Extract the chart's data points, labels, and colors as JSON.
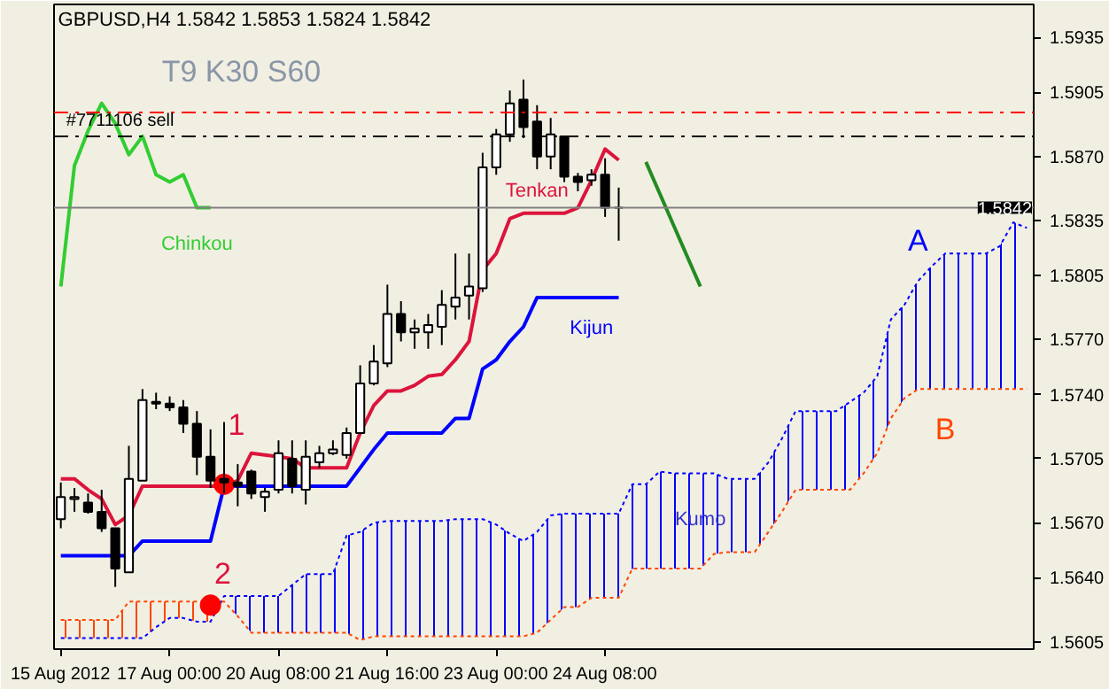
{
  "chart_data": {
    "type": "candlestick",
    "title": "GBPUSD,H4  1.5842 1.5853 1.5824 1.5842",
    "categories": [
      "15 Aug 2012",
      null,
      null,
      null,
      null,
      null,
      null,
      null,
      "17 Aug 00:00",
      null,
      null,
      null,
      null,
      null,
      null,
      null,
      "20 Aug 08:00",
      null,
      null,
      null,
      null,
      null,
      null,
      null,
      "21 Aug 16:00",
      null,
      null,
      null,
      null,
      null,
      null,
      null,
      "23 Aug 00:00",
      null,
      null,
      null,
      null,
      null,
      null,
      null,
      "24 Aug 08:00",
      null,
      null,
      null,
      null,
      null,
      null,
      null,
      null,
      null,
      null,
      null,
      null,
      null,
      null,
      null,
      null,
      null,
      null,
      null,
      null,
      null,
      null,
      null,
      null,
      null,
      null,
      null,
      null,
      null,
      null,
      null
    ],
    "ohlc": [
      [
        1.5672,
        1.5692,
        1.5667,
        1.5684
      ],
      [
        1.5683,
        1.5689,
        1.5676,
        1.5684
      ],
      [
        1.5681,
        1.5686,
        1.5675,
        1.5676
      ],
      [
        1.5676,
        1.5688,
        1.5665,
        1.5667
      ],
      [
        1.5667,
        1.5667,
        1.5635,
        1.5645
      ],
      [
        1.5643,
        1.5712,
        1.5643,
        1.5694
      ],
      [
        1.5693,
        1.5743,
        1.5693,
        1.5737
      ],
      [
        1.5735,
        1.5741,
        1.5732,
        1.5736
      ],
      [
        1.5735,
        1.5739,
        1.5731,
        1.5733
      ],
      [
        1.5733,
        1.5737,
        1.5719,
        1.5724
      ],
      [
        1.5724,
        1.5731,
        1.5696,
        1.5706
      ],
      [
        1.5706,
        1.5721,
        1.5689,
        1.5693
      ],
      [
        1.5694,
        1.5725,
        1.5686,
        1.5692
      ],
      [
        1.5692,
        1.5702,
        1.5679,
        1.569
      ],
      [
        1.5698,
        1.5699,
        1.5683,
        1.5686
      ],
      [
        1.5684,
        1.5689,
        1.5676,
        1.5687
      ],
      [
        1.5688,
        1.5715,
        1.5686,
        1.5708
      ],
      [
        1.5705,
        1.5715,
        1.5686,
        1.569
      ],
      [
        1.5688,
        1.5715,
        1.568,
        1.5706
      ],
      [
        1.5703,
        1.5712,
        1.57,
        1.5708
      ],
      [
        1.5708,
        1.5715,
        1.5707,
        1.571
      ],
      [
        1.5707,
        1.5722,
        1.5705,
        1.5719
      ],
      [
        1.5719,
        1.5756,
        1.5719,
        1.5746
      ],
      [
        1.5746,
        1.5767,
        1.5745,
        1.5758
      ],
      [
        1.5757,
        1.58,
        1.5755,
        1.5784
      ],
      [
        1.5784,
        1.5791,
        1.5769,
        1.5774
      ],
      [
        1.5774,
        1.5781,
        1.5765,
        1.5776
      ],
      [
        1.5774,
        1.5784,
        1.5765,
        1.5778
      ],
      [
        1.5777,
        1.5797,
        1.5767,
        1.5789
      ],
      [
        1.5788,
        1.5817,
        1.5781,
        1.5793
      ],
      [
        1.5794,
        1.5817,
        1.5781,
        1.5799
      ],
      [
        1.5798,
        1.5872,
        1.5796,
        1.5864
      ],
      [
        1.5864,
        1.5885,
        1.586,
        1.5882
      ],
      [
        1.5882,
        1.5906,
        1.5878,
        1.5899
      ],
      [
        1.5901,
        1.5912,
        1.588,
        1.5886
      ],
      [
        1.5889,
        1.5898,
        1.5863,
        1.587
      ],
      [
        1.587,
        1.5891,
        1.5863,
        1.5882
      ],
      [
        1.5881,
        1.5881,
        1.5856,
        1.5859
      ],
      [
        1.5859,
        1.5861,
        1.5851,
        1.5856
      ],
      [
        1.5857,
        1.5863,
        1.5854,
        1.586
      ],
      [
        1.586,
        1.5869,
        1.5837,
        1.5842
      ],
      [
        1.5842,
        1.5853,
        1.5824,
        1.5842
      ],
      null,
      null,
      null,
      null,
      null,
      null,
      null,
      null,
      null,
      null,
      null,
      null,
      null,
      null,
      null,
      null,
      null,
      null,
      null,
      null,
      null,
      null,
      null,
      null,
      null,
      null,
      null,
      null,
      null,
      null
    ],
    "series": [
      {
        "name": "Tenkan",
        "type": "line",
        "color": "#dc143c",
        "values": [
          1.5694,
          1.5694,
          1.5688,
          1.5683,
          1.5669,
          1.5674,
          1.569,
          1.569,
          1.569,
          1.569,
          1.569,
          1.569,
          1.569,
          1.5693,
          1.5708,
          1.5707,
          1.5706,
          1.5705,
          1.57,
          1.57,
          1.57,
          1.57,
          1.5719,
          1.5734,
          1.5742,
          1.5742,
          1.5745,
          1.575,
          1.5751,
          1.5759,
          1.5769,
          1.5808,
          1.5817,
          1.5836,
          1.5839,
          1.5839,
          1.5839,
          1.5839,
          1.5842,
          1.5857,
          1.5874,
          1.5868,
          null,
          null,
          null,
          null,
          null,
          null,
          null,
          null,
          null,
          null,
          null,
          null,
          null,
          null,
          null,
          null,
          null,
          null,
          null,
          null,
          null,
          null,
          null,
          null,
          null,
          null,
          null,
          null,
          null,
          null
        ]
      },
      {
        "name": "Kijun",
        "type": "line",
        "color": "#0000ff",
        "values": [
          1.5652,
          1.5652,
          1.5652,
          1.5652,
          1.5652,
          1.5652,
          1.566,
          1.566,
          1.566,
          1.566,
          1.566,
          1.566,
          1.569,
          1.569,
          1.569,
          1.569,
          1.569,
          1.569,
          1.569,
          1.569,
          1.569,
          1.569,
          1.57,
          1.571,
          1.5719,
          1.5719,
          1.5719,
          1.5719,
          1.5719,
          1.5727,
          1.5727,
          1.5754,
          1.5759,
          1.5769,
          1.5777,
          1.5793,
          1.5793,
          1.5793,
          1.5793,
          1.5793,
          1.5793,
          1.5793,
          null,
          null,
          null,
          null,
          null,
          null,
          null,
          null,
          null,
          null,
          null,
          null,
          null,
          null,
          null,
          null,
          null,
          null,
          null,
          null,
          null,
          null,
          null,
          null,
          null,
          null,
          null,
          null,
          null,
          null
        ]
      },
      {
        "name": "Chinkou",
        "type": "line",
        "color": "#32cd32",
        "values": [
          1.5799,
          1.5865,
          1.5884,
          1.5899,
          1.5888,
          1.5871,
          1.5881,
          1.586,
          1.5856,
          1.586,
          1.5842,
          1.5842,
          null,
          null,
          null,
          null,
          null,
          null,
          null,
          null,
          null,
          null,
          null,
          null,
          null,
          null,
          null,
          null,
          null,
          null,
          null,
          null,
          null,
          null,
          null,
          null,
          null,
          null,
          null,
          null,
          null,
          null,
          null,
          null,
          null,
          null,
          null,
          null,
          null,
          null,
          null,
          null,
          null,
          null,
          null,
          null,
          null,
          null,
          null,
          null,
          null,
          null,
          null,
          null,
          null,
          null,
          null,
          null,
          null,
          null,
          null,
          null
        ]
      },
      {
        "name": "A",
        "type": "line",
        "line_style": "dotted",
        "color": "#0000ff",
        "lower": [
          null,
          null,
          null,
          null,
          null,
          null,
          null,
          null,
          null,
          null,
          null,
          null,
          1.5627,
          1.5619,
          1.561,
          1.561,
          1.561,
          1.561,
          1.561,
          1.561,
          1.561,
          1.561,
          1.5606,
          1.5608,
          1.5608,
          1.5608,
          1.5608,
          1.5608,
          1.5608,
          1.5608,
          1.5608,
          1.5608,
          1.5608,
          1.5608,
          1.5608,
          1.561,
          1.5617,
          1.5624,
          1.5624,
          1.5629,
          1.5629,
          1.5629,
          1.5645,
          1.5645,
          1.5645,
          1.5645,
          1.5645,
          1.5645,
          1.5653,
          1.5654,
          1.5654,
          1.5654,
          1.5665,
          1.5676,
          1.5688,
          1.5688,
          1.5688,
          1.5688,
          1.5688,
          1.5697,
          1.5708,
          1.5727,
          1.5738,
          1.5743,
          1.5743,
          1.5743,
          1.5743,
          1.5743,
          1.5743,
          1.5743,
          1.5743,
          1.5743
        ],
        "upper": [
          null,
          null,
          null,
          null,
          null,
          null,
          null,
          null,
          null,
          null,
          null,
          null,
          1.563,
          1.563,
          1.563,
          1.563,
          1.563,
          1.5636,
          1.5642,
          1.5642,
          1.5642,
          1.5663,
          1.5665,
          1.567,
          1.5671,
          1.5671,
          1.5671,
          1.5671,
          1.5671,
          1.5672,
          1.5672,
          1.5672,
          1.5669,
          1.5664,
          1.566,
          1.5665,
          1.5674,
          1.5675,
          1.5675,
          1.5675,
          1.5675,
          1.5675,
          1.5691,
          1.5691,
          1.5698,
          1.5697,
          1.5697,
          1.5697,
          1.5697,
          1.5694,
          1.5694,
          1.5694,
          1.5703,
          1.5716,
          1.5731,
          1.5731,
          1.5731,
          1.5731,
          1.5736,
          1.5741,
          1.575,
          1.5781,
          1.5789,
          1.5802,
          1.581,
          1.5817,
          1.5817,
          1.5817,
          1.5817,
          1.5821,
          1.5834,
          1.5831
        ],
        "values": [
          1.5607,
          1.5607,
          1.5607,
          1.5607,
          1.5607,
          1.5607,
          1.5607,
          1.5613,
          1.5618,
          1.5618,
          1.5616,
          1.5616,
          1.563,
          1.563,
          1.563,
          1.563,
          1.563,
          1.5636,
          1.5642,
          1.5642,
          1.5642,
          1.5663,
          1.5665,
          1.567,
          1.5671,
          1.5671,
          1.5671,
          1.5671,
          1.5671,
          1.5672,
          1.5672,
          1.5672,
          1.5669,
          1.5664,
          1.566,
          1.5665,
          1.5674,
          1.5675,
          1.5675,
          1.5675,
          1.5675,
          1.5675,
          1.5691,
          1.5691,
          1.5698,
          1.5697,
          1.5697,
          1.5697,
          1.5697,
          1.5694,
          1.5694,
          1.5694,
          1.5703,
          1.5716,
          1.5731,
          1.5731,
          1.5731,
          1.5731,
          1.5736,
          1.5741,
          1.575,
          1.5781,
          1.5789,
          1.5802,
          1.581,
          1.5817,
          1.5817,
          1.5817,
          1.5817,
          1.5821,
          1.5834,
          1.5831
        ]
      },
      {
        "name": "B",
        "type": "line",
        "line_style": "dotted",
        "color": "#ff4500",
        "lower": [
          1.5607,
          1.5607,
          1.5607,
          1.5607,
          1.5607,
          1.5607,
          1.5607,
          1.5613,
          1.5618,
          1.5618,
          1.5616,
          1.5616,
          null,
          null,
          null,
          null,
          null,
          null,
          null,
          null,
          null,
          null,
          null,
          null,
          null,
          null,
          null,
          null,
          null,
          null,
          null,
          null,
          null,
          null,
          null,
          null,
          null,
          null,
          null,
          null,
          null,
          null,
          null,
          null,
          null,
          null,
          null,
          null,
          null,
          null,
          null,
          null,
          null,
          null,
          null,
          null,
          null,
          null,
          null,
          null,
          null,
          null,
          null,
          null,
          null,
          null,
          null,
          null,
          null,
          null,
          null,
          null
        ],
        "upper": [
          1.5617,
          1.5617,
          1.5617,
          1.5617,
          1.5617,
          1.5627,
          1.5627,
          1.5627,
          1.5627,
          1.5627,
          1.5627,
          1.5627,
          null,
          null,
          null,
          null,
          null,
          null,
          null,
          null,
          null,
          null,
          null,
          null,
          null,
          null,
          null,
          null,
          null,
          null,
          null,
          null,
          null,
          null,
          null,
          null,
          null,
          null,
          null,
          null,
          null,
          null,
          null,
          null,
          null,
          null,
          null,
          null,
          null,
          null,
          null,
          null,
          null,
          null,
          null,
          null,
          null,
          null,
          null,
          null,
          null,
          null,
          null,
          null,
          null,
          null,
          null,
          null,
          null,
          null,
          null,
          null
        ],
        "values": [
          1.5617,
          1.5617,
          1.5617,
          1.5617,
          1.5617,
          1.5627,
          1.5627,
          1.5627,
          1.5627,
          1.5627,
          1.5627,
          1.5627,
          1.5627,
          1.5619,
          1.561,
          1.561,
          1.561,
          1.561,
          1.561,
          1.561,
          1.561,
          1.561,
          1.5606,
          1.5608,
          1.5608,
          1.5608,
          1.5608,
          1.5608,
          1.5608,
          1.5608,
          1.5608,
          1.5608,
          1.5608,
          1.5608,
          1.5608,
          1.561,
          1.5617,
          1.5624,
          1.5624,
          1.5629,
          1.5629,
          1.5629,
          1.5645,
          1.5645,
          1.5645,
          1.5645,
          1.5645,
          1.5645,
          1.5653,
          1.5654,
          1.5654,
          1.5654,
          1.5665,
          1.5676,
          1.5688,
          1.5688,
          1.5688,
          1.5688,
          1.5688,
          1.5697,
          1.5708,
          1.5727,
          1.5738,
          1.5743,
          1.5743,
          1.5743,
          1.5743,
          1.5743,
          1.5743,
          1.5743,
          1.5743,
          1.5743
        ]
      },
      {
        "type": "line",
        "color": "#228b22",
        "values": [
          null,
          null,
          null,
          null,
          null,
          null,
          null,
          null,
          null,
          null,
          null,
          null,
          null,
          null,
          null,
          null,
          null,
          null,
          null,
          null,
          null,
          null,
          null,
          null,
          null,
          null,
          null,
          null,
          null,
          null,
          null,
          null,
          null,
          null,
          null,
          null,
          null,
          null,
          null,
          null,
          null,
          null,
          null,
          1.5867,
          null,
          null,
          null,
          1.5799,
          null,
          null,
          null,
          null,
          null,
          null,
          null,
          null,
          null,
          null,
          null,
          null,
          null,
          null,
          null,
          null,
          null,
          null,
          null,
          null,
          null,
          null,
          null,
          null
        ]
      },
      {
        "type": "scatter",
        "marker": "circle",
        "color": "#ff0000",
        "values": [
          null,
          null,
          null,
          null,
          null,
          null,
          null,
          null,
          null,
          null,
          null,
          1.5625,
          1.5691,
          null,
          null,
          null,
          null,
          null,
          null,
          null,
          null,
          null,
          null,
          null,
          null,
          null,
          null,
          null,
          null,
          null,
          null,
          null,
          null,
          null,
          null,
          null,
          null,
          null,
          null,
          null,
          null,
          null,
          null,
          null,
          null,
          null,
          null,
          null,
          null,
          null,
          null,
          null,
          null,
          null,
          null,
          null,
          null,
          null,
          null,
          null,
          null,
          null,
          null,
          null,
          null,
          null,
          null,
          null,
          null,
          null,
          null,
          null
        ]
      }
    ],
    "annotations": [
      "T9 K30 S60",
      "Kumo",
      {
        "text": "1",
        "y": 1.5691
      },
      {
        "text": "2",
        "y": 1.5625
      }
    ],
    "ref_lines": [
      {
        "axis": "y",
        "value": 1.5894,
        "color": "#ff0000",
        "line_style": "dashdot"
      },
      {
        "axis": "y",
        "value": 1.5881,
        "color": "#000000",
        "line_style": "dashdot",
        "label": "#7711106 sell"
      },
      {
        "axis": "y",
        "value": 1.5842,
        "color": "#808080",
        "line_style": "solid",
        "label": "1.5842"
      }
    ],
    "ylim": [
      1.5601,
      1.5953
    ],
    "yticks": [
      {
        "value": 1.5605,
        "label": "1.5605"
      },
      {
        "value": 1.564,
        "label": "1.5640"
      },
      {
        "value": 1.567,
        "label": "1.5670"
      },
      {
        "value": 1.5705,
        "label": "1.5705"
      },
      {
        "value": 1.574,
        "label": "1.5740"
      },
      {
        "value": 1.577,
        "label": "1.5770"
      },
      {
        "value": 1.5805,
        "label": "1.5805"
      },
      {
        "value": 1.5835,
        "label": "1.5835"
      },
      {
        "value": 1.587,
        "label": "1.5870"
      },
      {
        "value": 1.5905,
        "label": "1.5905"
      },
      {
        "value": 1.5935,
        "label": "1.5935"
      }
    ],
    "grid": false
  }
}
